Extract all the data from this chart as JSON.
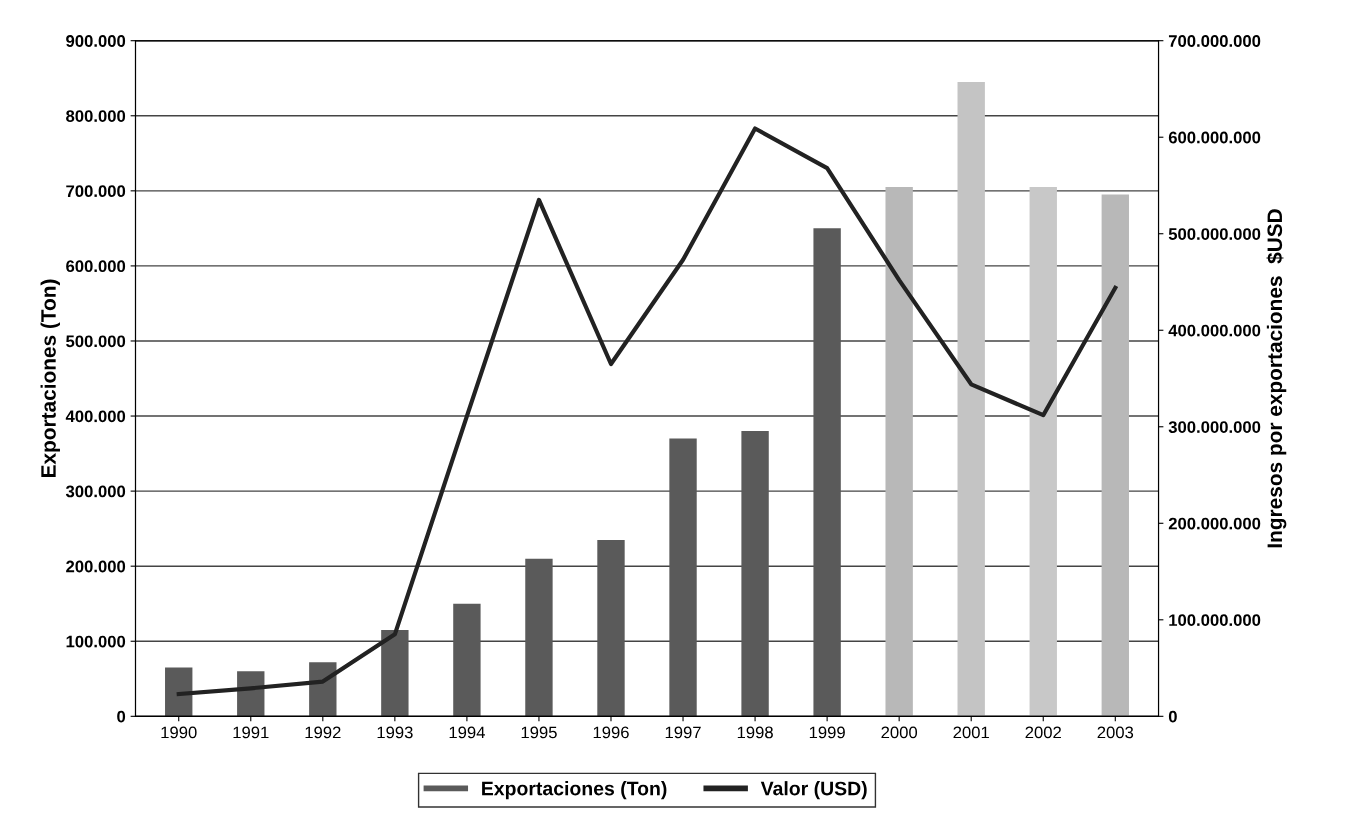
{
  "chart_data": {
    "type": "bar",
    "categories": [
      "1990",
      "1991",
      "1992",
      "1993",
      "1994",
      "1995",
      "1996",
      "1997",
      "1998",
      "1999",
      "2000",
      "2001",
      "2002",
      "2003"
    ],
    "ylabel": "Exportaciones (Ton)",
    "y2label": "Ingresos por exportaciones  $USD",
    "series": [
      {
        "name": "Exportaciones (Ton)",
        "color": "#5a5a5a",
        "colors": [
          "#5a5a5a",
          "#5a5a5a",
          "#5a5a5a",
          "#5a5a5a",
          "#5a5a5a",
          "#5a5a5a",
          "#5a5a5a",
          "#5a5a5a",
          "#5a5a5a",
          "#5a5a5a",
          "#b8b8b8",
          "#c4c4c4",
          "#c8c8c8",
          "#b8b8b8"
        ],
        "values": [
          65000,
          60000,
          72000,
          115000,
          150000,
          210000,
          235000,
          370000,
          380000,
          650000,
          705000,
          845000,
          705000,
          695000
        ]
      },
      {
        "name": "Valor (USD)",
        "type": "line",
        "axis": "y2",
        "color": "#222222",
        "values": [
          23000000,
          29000000,
          36000000,
          85000000,
          311000000,
          535000000,
          365000000,
          473000000,
          609000000,
          568000000,
          452000000,
          344000000,
          312000000,
          444000000
        ]
      }
    ],
    "ylim": [
      0,
      900000
    ],
    "yticks": [
      {
        "value": 0,
        "label": "0"
      },
      {
        "value": 100000,
        "label": "100.000"
      },
      {
        "value": 200000,
        "label": "200.000"
      },
      {
        "value": 300000,
        "label": "300.000"
      },
      {
        "value": 400000,
        "label": "400.000"
      },
      {
        "value": 500000,
        "label": "500.000"
      },
      {
        "value": 600000,
        "label": "600.000"
      },
      {
        "value": 700000,
        "label": "700.000"
      },
      {
        "value": 800000,
        "label": "800.000"
      },
      {
        "value": 900000,
        "label": "900.000"
      }
    ],
    "y2lim": [
      0,
      700000000
    ],
    "y2ticks": [
      {
        "value": 0,
        "label": "0"
      },
      {
        "value": 100000000,
        "label": "100.000.000"
      },
      {
        "value": 200000000,
        "label": "200.000.000"
      },
      {
        "value": 300000000,
        "label": "300.000.000"
      },
      {
        "value": 400000000,
        "label": "400.000.000"
      },
      {
        "value": 500000000,
        "label": "500.000.000"
      },
      {
        "value": 600000000,
        "label": "600.000.000"
      },
      {
        "value": 700000000,
        "label": "700.000.000"
      }
    ],
    "grid": "y",
    "legend": "bottom",
    "marker": "none",
    "line_style": "solid"
  }
}
